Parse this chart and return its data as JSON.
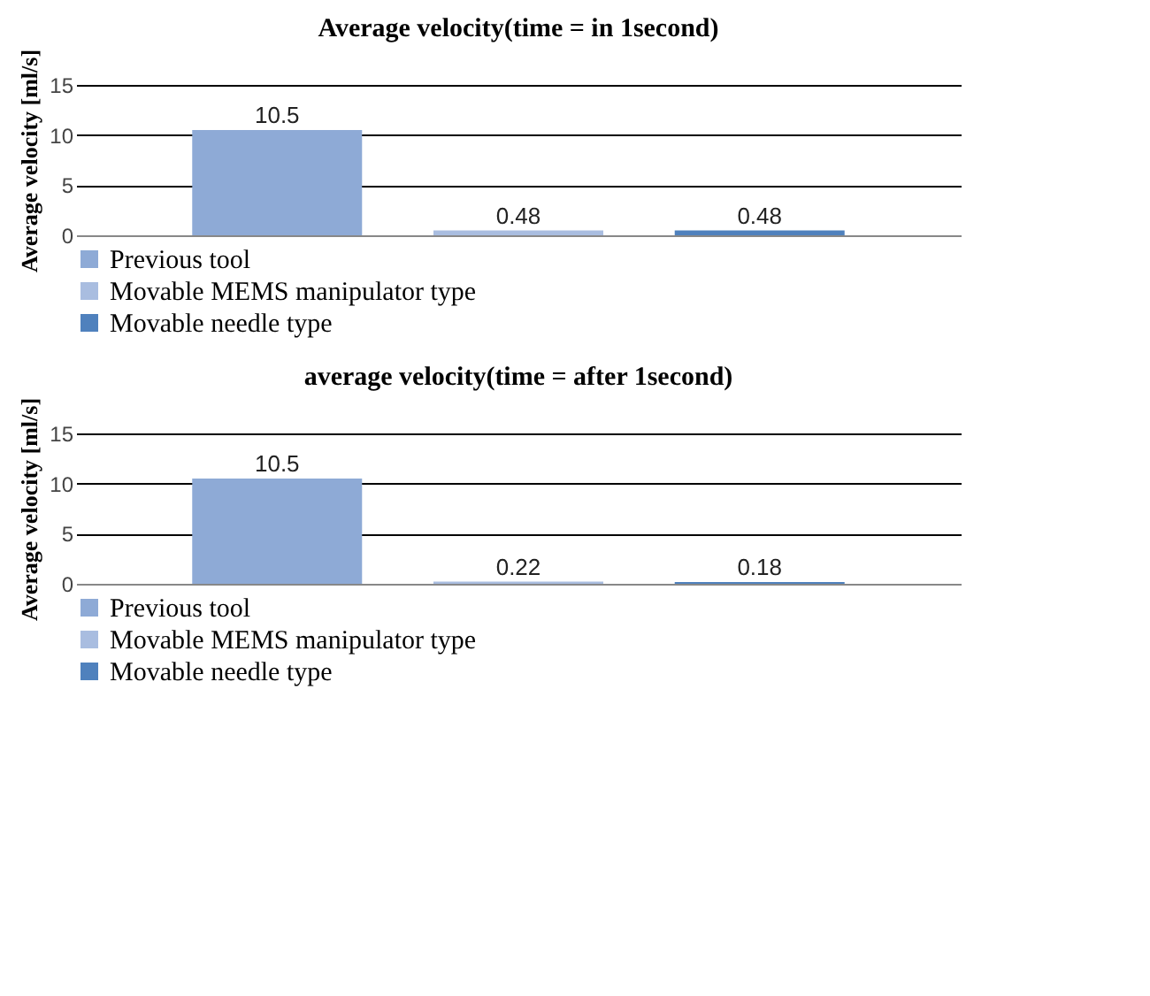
{
  "chart_data": [
    {
      "type": "bar",
      "title": "Average velocity(time = in 1second)",
      "ylabel": "Average velocity [ml/s]",
      "categories": [
        null
      ],
      "ylim": [
        0,
        15
      ],
      "yticks": [
        0,
        5,
        10,
        15
      ],
      "grid": "y",
      "legend": "bottom",
      "data_labels": true,
      "series": [
        {
          "name": "Previous tool",
          "color": "#8eaad6",
          "values": [
            10.5
          ]
        },
        {
          "name": "Movable MEMS manipulator type",
          "color": "#a9bde0",
          "values": [
            0.48
          ]
        },
        {
          "name": "Movable needle type",
          "color": "#4f81bd",
          "values": [
            0.48
          ]
        }
      ]
    },
    {
      "type": "bar",
      "title": "average velocity(time = after 1second)",
      "ylabel": "Average velocity [ml/s]",
      "categories": [
        null
      ],
      "ylim": [
        0,
        15
      ],
      "yticks": [
        0,
        5,
        10,
        15
      ],
      "grid": "y",
      "legend": "bottom",
      "data_labels": true,
      "series": [
        {
          "name": "Previous tool",
          "color": "#8eaad6",
          "values": [
            10.5
          ]
        },
        {
          "name": "Movable MEMS manipulator type",
          "color": "#a9bde0",
          "values": [
            0.22
          ]
        },
        {
          "name": "Movable needle type",
          "color": "#4f81bd",
          "values": [
            0.18
          ]
        }
      ]
    }
  ]
}
